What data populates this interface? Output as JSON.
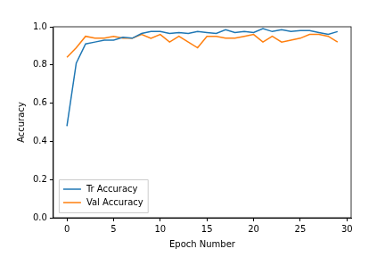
{
  "chart_data": {
    "type": "line",
    "x_label": "Epoch Number",
    "y_label": "Accuracy",
    "x": [
      0,
      1,
      2,
      3,
      4,
      5,
      6,
      7,
      8,
      9,
      10,
      11,
      12,
      13,
      14,
      15,
      16,
      17,
      18,
      19,
      20,
      21,
      22,
      23,
      24,
      25,
      26,
      27,
      28,
      29
    ],
    "series": [
      {
        "name": "Tr Accuracy",
        "color": "#1f77b4",
        "values": [
          0.48,
          0.81,
          0.91,
          0.92,
          0.93,
          0.93,
          0.945,
          0.94,
          0.965,
          0.975,
          0.975,
          0.965,
          0.97,
          0.965,
          0.975,
          0.97,
          0.965,
          0.985,
          0.97,
          0.975,
          0.97,
          0.99,
          0.975,
          0.985,
          0.975,
          0.98,
          0.98,
          0.97,
          0.96,
          0.975
        ]
      },
      {
        "name": "Val Accuracy",
        "color": "#ff7f0e",
        "values": [
          0.84,
          0.89,
          0.95,
          0.94,
          0.94,
          0.95,
          0.94,
          0.94,
          0.96,
          0.94,
          0.96,
          0.92,
          0.95,
          0.92,
          0.89,
          0.95,
          0.95,
          0.94,
          0.94,
          0.95,
          0.96,
          0.92,
          0.95,
          0.92,
          0.93,
          0.94,
          0.96,
          0.96,
          0.95,
          0.92
        ]
      }
    ],
    "xlim": [
      -1.45,
      30.45
    ],
    "xticks": [
      0,
      5,
      10,
      15,
      20,
      25,
      30
    ],
    "ylim": [
      0,
      1
    ],
    "yticks": [
      {
        "value": 0,
        "label": "0.0"
      },
      0.2,
      0.4,
      0.6,
      0.8,
      {
        "value": 1,
        "label": "1.0"
      }
    ],
    "grid": false,
    "legend": "lower left",
    "marker": "none",
    "line_style": "solid"
  }
}
